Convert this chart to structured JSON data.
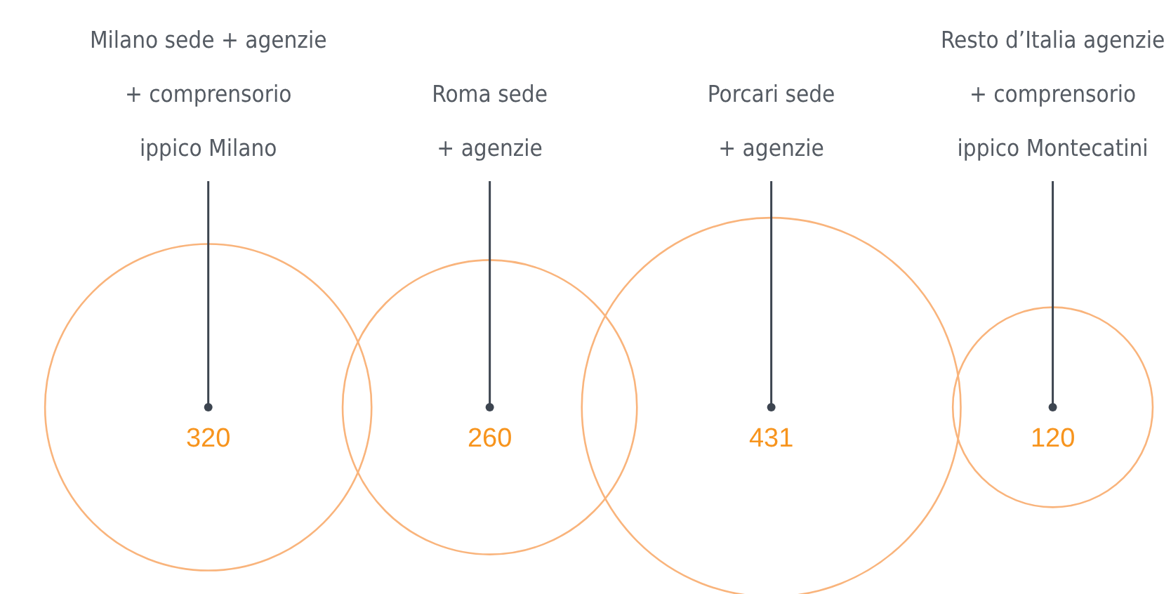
{
  "chart_data": {
    "type": "other",
    "categories": [
      "Milano sede + agenzie\n+ comprensorio\nippico Milano",
      "Roma sede\n+ agenzie",
      "Porcari sede\n+ agenzie",
      "Resto d’Italia agenzie\n+ comprensorio\nippico Montecatini"
    ],
    "values": [
      320,
      260,
      431,
      120
    ],
    "color": "#f9b47c",
    "data_labels": true
  }
}
